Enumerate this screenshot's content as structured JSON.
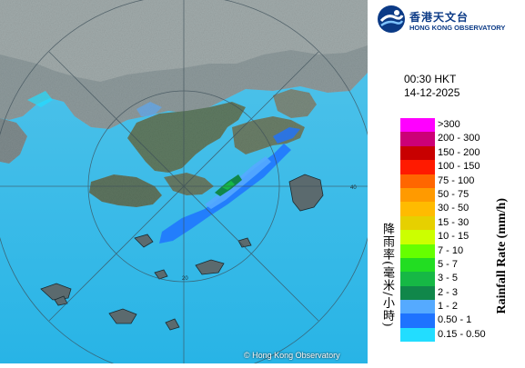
{
  "logo": {
    "name_zh": "香港天文台",
    "name_en": "HONG KONG OBSERVATORY"
  },
  "timestamp": {
    "time": "00:30 HKT",
    "date": "14-12-2025"
  },
  "legend": [
    {
      "label": ">300",
      "color": "#ff00ff"
    },
    {
      "label": "200 - 300",
      "color": "#cc0077"
    },
    {
      "label": "150 - 200",
      "color": "#c80000"
    },
    {
      "label": "100 - 150",
      "color": "#ff1a00"
    },
    {
      "label": "75 - 100",
      "color": "#ff6600"
    },
    {
      "label": "50 - 75",
      "color": "#ff9a00"
    },
    {
      "label": "30 - 50",
      "color": "#ffbb00"
    },
    {
      "label": "15 - 30",
      "color": "#e6d000"
    },
    {
      "label": "10 - 15",
      "color": "#ccff00"
    },
    {
      "label": "7 - 10",
      "color": "#66ff00"
    },
    {
      "label": "5 - 7",
      "color": "#22dd22"
    },
    {
      "label": "3 - 5",
      "color": "#16b845"
    },
    {
      "label": "2 - 3",
      "color": "#10874a"
    },
    {
      "label": "1 - 2",
      "color": "#55aaff"
    },
    {
      "label": "0.50 - 1",
      "color": "#1e73ff"
    },
    {
      "label": "0.15 - 0.50",
      "color": "#22ddff"
    }
  ],
  "legend_title_zh": "降雨率(毫米/小時)",
  "legend_title_en": "Rainfall Rate (mm/h)",
  "range_rings": [
    "20",
    "40"
  ],
  "copyright": "© Hong Kong Observatory",
  "colors": {
    "sea": "#2cb8e8",
    "land": "#7a8a8e",
    "ring": "#3c4e58"
  }
}
